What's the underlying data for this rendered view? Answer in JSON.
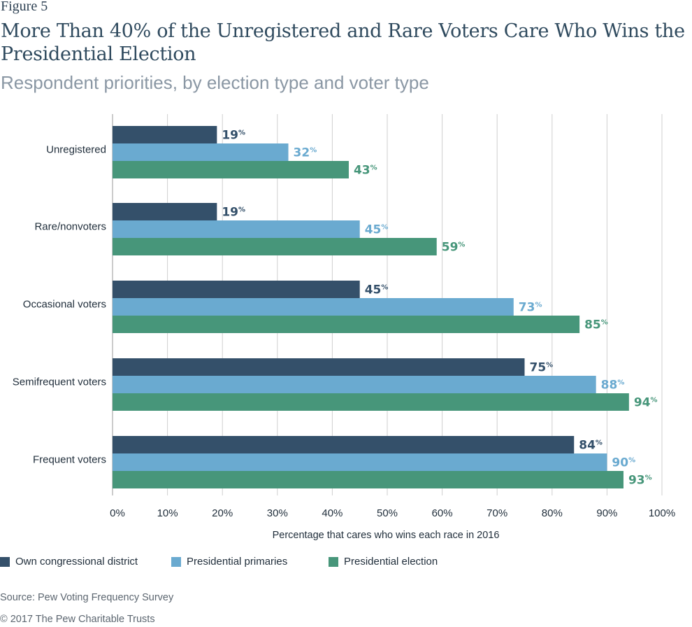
{
  "figure_label": "Figure 5",
  "title": "More Than 40% of the Unregistered and Rare Voters Care Who Wins the Presidential Election",
  "subtitle": "Respondent priorities, by election type and voter type",
  "source": "Source: Pew Voting Frequency Survey",
  "copyright": "© 2017 The Pew Charitable Trusts",
  "colors": {
    "own_congressional_district": "#34506a",
    "presidential_primaries": "#6aaad0",
    "presidential_election": "#47967a",
    "grid": "#cfcfcf"
  },
  "chart_data": {
    "type": "bar",
    "orientation": "horizontal",
    "title": "More Than 40% of the Unregistered and Rare Voters Care Who Wins the Presidential Election",
    "subtitle": "Respondent priorities, by election type and voter type",
    "xlabel": "Percentage that cares who wins each race in 2016",
    "ylabel": "",
    "xlim": [
      0,
      100
    ],
    "xticks": [
      0,
      10,
      20,
      30,
      40,
      50,
      60,
      70,
      80,
      90,
      100
    ],
    "tick_labels": [
      "0%",
      "10%",
      "20%",
      "30%",
      "40%",
      "50%",
      "60%",
      "70%",
      "80%",
      "90%",
      "100%"
    ],
    "grid": true,
    "legend_position": "bottom-left",
    "value_suffix": "%",
    "categories": [
      "Unregistered",
      "Rare/nonvoters",
      "Occasional voters",
      "Semifrequent voters",
      "Frequent voters"
    ],
    "series": [
      {
        "key": "own_congressional_district",
        "name": "Own congressional district",
        "values": [
          19,
          19,
          45,
          75,
          84
        ]
      },
      {
        "key": "presidential_primaries",
        "name": "Presidential primaries",
        "values": [
          32,
          45,
          73,
          88,
          90
        ]
      },
      {
        "key": "presidential_election",
        "name": "Presidential election",
        "values": [
          43,
          59,
          85,
          94,
          93
        ]
      }
    ]
  }
}
